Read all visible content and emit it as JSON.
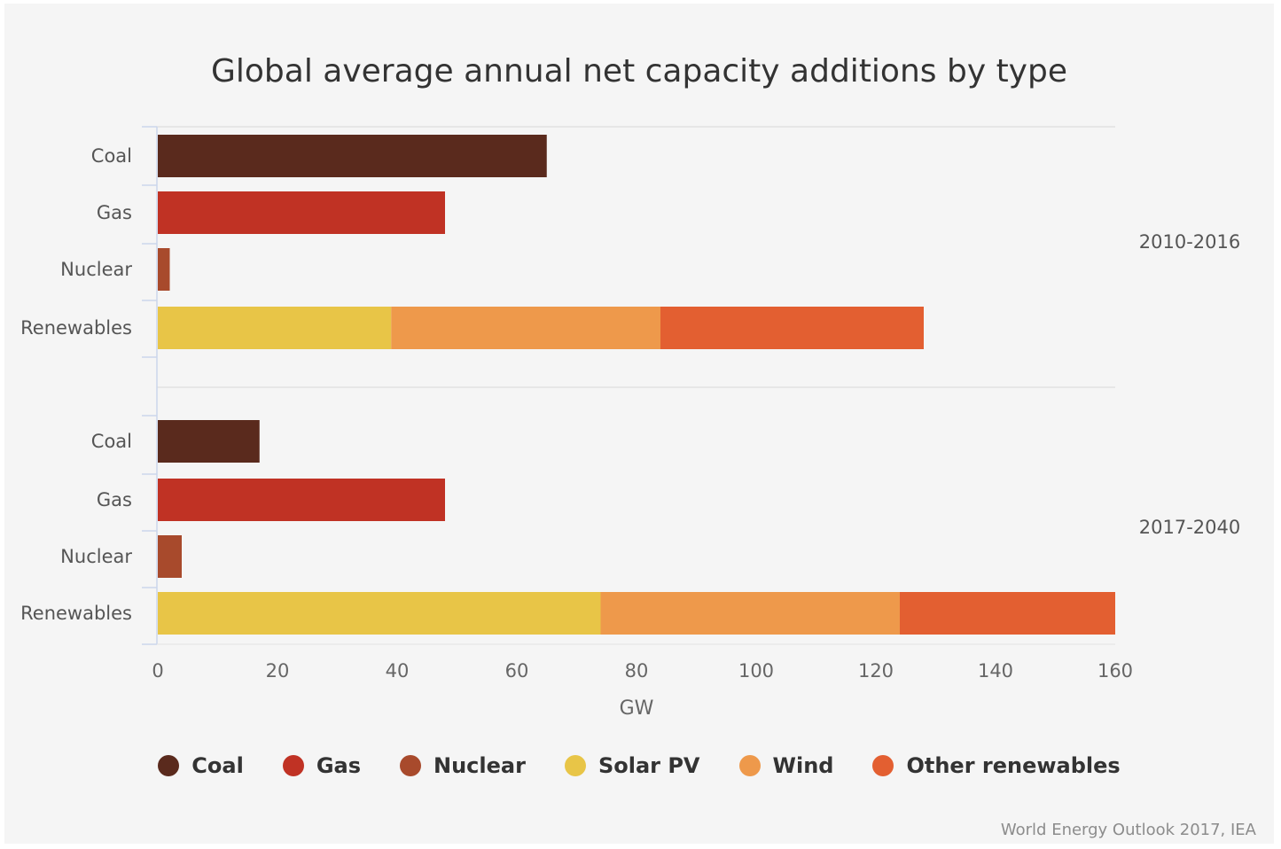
{
  "chart_data": {
    "type": "bar",
    "orientation": "horizontal",
    "stacked": true,
    "title": "Global average annual net capacity additions by type",
    "xlabel": "GW",
    "xlim": [
      0,
      160
    ],
    "xticks": [
      "0",
      "20",
      "40",
      "60",
      "80",
      "100",
      "120",
      "140",
      "160"
    ],
    "grid": true,
    "legend_placement": "bottom",
    "legend": [
      {
        "name": "Coal",
        "color": "#5a2a1d"
      },
      {
        "name": "Gas",
        "color": "#c03224"
      },
      {
        "name": "Nuclear",
        "color": "#a84a2c"
      },
      {
        "name": "Solar PV",
        "color": "#e8c547"
      },
      {
        "name": "Wind",
        "color": "#ee994b"
      },
      {
        "name": "Other renewables",
        "color": "#e35f31"
      }
    ],
    "groups": [
      {
        "period": "2010-2016",
        "categories": [
          "Coal",
          "Gas",
          "Nuclear",
          "Renewables"
        ],
        "bars": [
          {
            "category": "Coal",
            "segments": [
              {
                "series": "Coal",
                "value": 65
              }
            ]
          },
          {
            "category": "Gas",
            "segments": [
              {
                "series": "Gas",
                "value": 48
              }
            ]
          },
          {
            "category": "Nuclear",
            "segments": [
              {
                "series": "Nuclear",
                "value": 2
              }
            ]
          },
          {
            "category": "Renewables",
            "segments": [
              {
                "series": "Solar PV",
                "value": 39
              },
              {
                "series": "Wind",
                "value": 45
              },
              {
                "series": "Other renewables",
                "value": 44
              }
            ]
          }
        ]
      },
      {
        "period": "2017-2040",
        "categories": [
          "Coal",
          "Gas",
          "Nuclear",
          "Renewables"
        ],
        "bars": [
          {
            "category": "Coal",
            "segments": [
              {
                "series": "Coal",
                "value": 17
              }
            ]
          },
          {
            "category": "Gas",
            "segments": [
              {
                "series": "Gas",
                "value": 48
              }
            ]
          },
          {
            "category": "Nuclear",
            "segments": [
              {
                "series": "Nuclear",
                "value": 4
              }
            ]
          },
          {
            "category": "Renewables",
            "segments": [
              {
                "series": "Solar PV",
                "value": 74
              },
              {
                "series": "Wind",
                "value": 50
              },
              {
                "series": "Other renewables",
                "value": 36
              }
            ]
          }
        ]
      }
    ]
  },
  "source": "World Energy Outlook 2017, IEA"
}
